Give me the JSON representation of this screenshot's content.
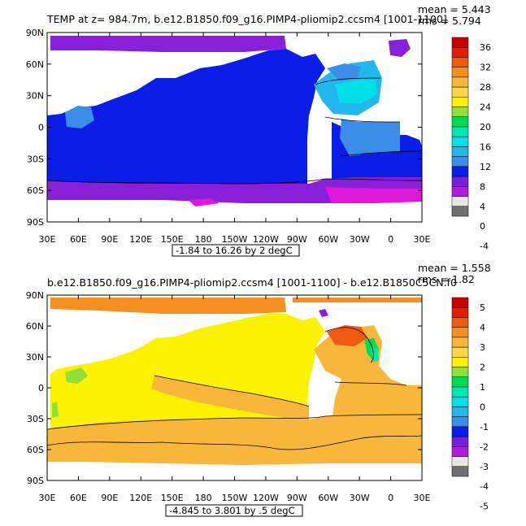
{
  "chart_data": [
    {
      "type": "heatmap",
      "title": "TEMP at z= 984.7m, b.e12.B1850.f09_g16.PIMP4-pliomip2.ccsm4 [1001-1100]",
      "stats": {
        "mean": "mean = 5.443",
        "rms": "rms = 5.794"
      },
      "contour_label": "-1.84 to 16.26 by 2 degC",
      "x_tick_labels": [
        "30E",
        "60E",
        "90E",
        "120E",
        "150E",
        "180",
        "150W",
        "120W",
        "90W",
        "60W",
        "30W",
        "0",
        "30E"
      ],
      "y_tick_labels": [
        "90N",
        "60N",
        "30N",
        "0",
        "30S",
        "60S",
        "90S"
      ],
      "xlim": [
        30,
        390
      ],
      "ylim": [
        -90,
        90
      ],
      "colorbar": {
        "labels": [
          "36",
          "32",
          "28",
          "24",
          "20",
          "16",
          "12",
          "8",
          "4",
          "0",
          "-4"
        ],
        "colors": [
          "#cc0000",
          "#e81c00",
          "#f05a10",
          "#f59020",
          "#f8b63a",
          "#fbd54a",
          "#fdf200",
          "#8fe03a",
          "#00dd55",
          "#00e8b0",
          "#00e0e8",
          "#22b8ee",
          "#3a8ee8",
          "#0a1ee8",
          "#7a1fd8",
          "#b01ed8",
          "#e8e8e8",
          "#707070"
        ]
      },
      "regions": [
        {
          "name": "arctic-band",
          "color": "#8a1fd8"
        },
        {
          "name": "southern-ocean",
          "color": "#8a1fd8"
        },
        {
          "name": "antarctic-shelf",
          "color": "#dd19d8"
        },
        {
          "name": "north-atlantic",
          "color": "#22b8ee"
        },
        {
          "name": "tropical-atlantic",
          "color": "#3a8ee8"
        },
        {
          "name": "main-ocean",
          "color": "#0a1ee8"
        }
      ]
    },
    {
      "type": "heatmap",
      "title": "b.e12.B1850.f09_g16.PIMP4-pliomip2.ccsm4 [1001-1100] - b.e12.B1850C5CN.f0",
      "stats": {
        "mean": "mean = 1.558",
        "rms": "rms = 1.82"
      },
      "contour_label": "-4.845 to 3.801 by .5 degC",
      "x_tick_labels": [
        "30E",
        "60E",
        "90E",
        "120E",
        "150E",
        "180",
        "150W",
        "120W",
        "90W",
        "60W",
        "30W",
        "0",
        "30E"
      ],
      "y_tick_labels": [
        "90N",
        "60N",
        "30N",
        "0",
        "30S",
        "60S",
        "90S"
      ],
      "xlim": [
        30,
        390
      ],
      "ylim": [
        -90,
        90
      ],
      "colorbar": {
        "labels": [
          "5",
          "4",
          "3",
          "2",
          "1",
          "0",
          "-1",
          "-2",
          "-3",
          "-4",
          "-5"
        ],
        "colors": [
          "#cc0000",
          "#e81c00",
          "#f05a10",
          "#f59020",
          "#f8b63a",
          "#fbd54a",
          "#fdf200",
          "#8fe03a",
          "#00dd55",
          "#00e8b0",
          "#00e0e8",
          "#22b8ee",
          "#3a8ee8",
          "#0a1ee8",
          "#7a1fd8",
          "#b01ed8",
          "#e8e8e8",
          "#707070"
        ]
      },
      "regions": [
        {
          "name": "arctic-band",
          "color": "#f59020"
        },
        {
          "name": "pacific-indian",
          "color": "#fdf200"
        },
        {
          "name": "atlantic",
          "color": "#f8b63a"
        },
        {
          "name": "southern-ocean",
          "color": "#f8b63a"
        },
        {
          "name": "north-atlantic-core",
          "color": "#f05a10"
        },
        {
          "name": "north-atlantic-edge",
          "color": "#00dd55"
        },
        {
          "name": "west-edge",
          "color": "#8fe03a"
        }
      ]
    }
  ]
}
